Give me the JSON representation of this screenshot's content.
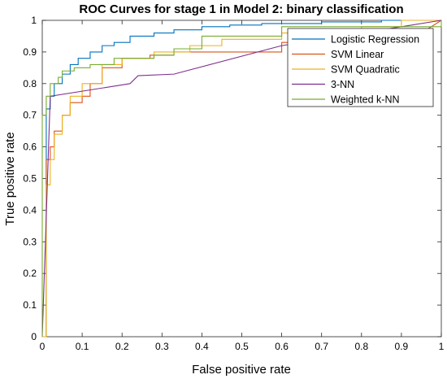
{
  "chart_data": {
    "type": "line",
    "title": "ROC Curves for stage 1 in Model 2: binary classification",
    "xlabel": "False positive rate",
    "ylabel": "True positive rate",
    "xlim": [
      0,
      1
    ],
    "ylim": [
      0,
      1
    ],
    "xticks": [
      "0",
      "0.1",
      "0.2",
      "0.3",
      "0.4",
      "0.5",
      "0.6",
      "0.7",
      "0.8",
      "0.9",
      "1"
    ],
    "yticks": [
      "0",
      "0.1",
      "0.2",
      "0.3",
      "0.4",
      "0.5",
      "0.6",
      "0.7",
      "0.8",
      "0.9",
      "1"
    ],
    "grid": false,
    "legend_position": "top-right",
    "series": [
      {
        "name": "Logistic Regression",
        "color": "#0072BD",
        "x": [
          0,
          0.01,
          0.01,
          0.02,
          0.02,
          0.03,
          0.03,
          0.05,
          0.05,
          0.07,
          0.07,
          0.09,
          0.09,
          0.12,
          0.12,
          0.15,
          0.15,
          0.18,
          0.18,
          0.22,
          0.22,
          0.28,
          0.28,
          0.33,
          0.33,
          0.4,
          0.4,
          0.47,
          0.47,
          0.55,
          0.55,
          0.62,
          0.62,
          0.7,
          0.7,
          0.78,
          0.78,
          0.85,
          0.85,
          0.92,
          0.92,
          1
        ],
        "y": [
          0,
          0,
          0.72,
          0.72,
          0.76,
          0.76,
          0.8,
          0.8,
          0.83,
          0.83,
          0.86,
          0.86,
          0.88,
          0.88,
          0.9,
          0.9,
          0.92,
          0.92,
          0.93,
          0.93,
          0.95,
          0.95,
          0.96,
          0.96,
          0.97,
          0.97,
          0.98,
          0.98,
          0.985,
          0.985,
          0.99,
          0.99,
          0.99,
          0.99,
          0.995,
          0.995,
          0.995,
          0.995,
          1,
          1,
          1,
          1
        ]
      },
      {
        "name": "SVM Linear",
        "color": "#D95319",
        "x": [
          0,
          0.01,
          0.01,
          0.02,
          0.02,
          0.03,
          0.03,
          0.05,
          0.05,
          0.07,
          0.07,
          0.1,
          0.1,
          0.12,
          0.12,
          0.15,
          0.15,
          0.2,
          0.2,
          0.27,
          0.27,
          0.33,
          0.33,
          0.6,
          0.6,
          0.8,
          0.8,
          0.95,
          1
        ],
        "y": [
          0,
          0,
          0.56,
          0.56,
          0.6,
          0.6,
          0.65,
          0.65,
          0.7,
          0.7,
          0.74,
          0.74,
          0.76,
          0.76,
          0.8,
          0.8,
          0.85,
          0.85,
          0.88,
          0.88,
          0.89,
          0.89,
          0.9,
          0.9,
          0.93,
          0.93,
          0.96,
          0.96,
          1
        ]
      },
      {
        "name": "SVM Quadratic",
        "color": "#EDB120",
        "x": [
          0,
          0.01,
          0.01,
          0.02,
          0.02,
          0.03,
          0.03,
          0.05,
          0.05,
          0.07,
          0.07,
          0.1,
          0.1,
          0.15,
          0.15,
          0.2,
          0.2,
          0.28,
          0.28,
          0.37,
          0.37,
          0.45,
          0.45,
          0.6,
          0.6,
          0.8,
          0.8,
          0.9,
          0.9,
          1
        ],
        "y": [
          0,
          0,
          0.48,
          0.48,
          0.56,
          0.56,
          0.64,
          0.64,
          0.7,
          0.7,
          0.76,
          0.76,
          0.8,
          0.8,
          0.86,
          0.86,
          0.88,
          0.88,
          0.9,
          0.9,
          0.92,
          0.92,
          0.94,
          0.94,
          0.96,
          0.96,
          0.98,
          0.98,
          1,
          1
        ]
      },
      {
        "name": "3-NN",
        "color": "#7E2F8E",
        "x": [
          0,
          0.02,
          0.02,
          0.22,
          0.24,
          0.33,
          0.6,
          1
        ],
        "y": [
          0,
          0.76,
          0.76,
          0.8,
          0.825,
          0.83,
          0.92,
          1
        ]
      },
      {
        "name": "Weighted k-NN",
        "color": "#77AC30",
        "x": [
          0,
          0,
          0.01,
          0.01,
          0.02,
          0.02,
          0.04,
          0.04,
          0.05,
          0.05,
          0.08,
          0.08,
          0.12,
          0.12,
          0.18,
          0.18,
          0.28,
          0.28,
          0.33,
          0.33,
          0.4,
          0.4,
          0.6,
          0.6,
          1,
          1
        ],
        "y": [
          0,
          0.7,
          0.7,
          0.76,
          0.76,
          0.8,
          0.8,
          0.82,
          0.82,
          0.84,
          0.84,
          0.85,
          0.85,
          0.86,
          0.86,
          0.88,
          0.88,
          0.89,
          0.89,
          0.91,
          0.91,
          0.95,
          0.95,
          0.98,
          0.98,
          1
        ]
      }
    ]
  }
}
